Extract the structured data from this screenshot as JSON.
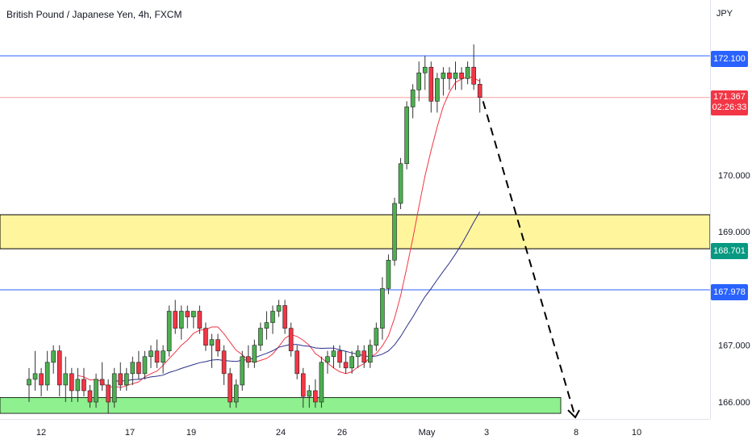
{
  "header": {
    "title": "British Pound / Japanese Yen, 4h, FXCM",
    "currency": "JPY"
  },
  "price_labels": {
    "resistance_top": {
      "value": "172.100",
      "color": "#2962ff"
    },
    "last_price": {
      "value": "171.367",
      "countdown": "02:26:33",
      "color": "#f23645"
    },
    "support_zone": {
      "value": "168.701",
      "color": "#089981"
    },
    "level_mid": {
      "value": "167.978",
      "color": "#2962ff"
    }
  },
  "chart_data": {
    "type": "candlestick",
    "title": "British Pound / Japanese Yen, 4h, FXCM",
    "y_axis": {
      "ticks": [
        "166.000",
        "167.000",
        "169.000",
        "170.000"
      ],
      "ylim": [
        165.8,
        172.4
      ]
    },
    "x_axis": {
      "ticks": [
        "12",
        "17",
        "19",
        "24",
        "26",
        "May",
        "3",
        "8",
        "10"
      ]
    },
    "horizontal_lines": [
      {
        "value": 172.1,
        "color": "#2962ff"
      },
      {
        "value": 171.367,
        "color": "#f7a1a1"
      },
      {
        "value": 167.978,
        "color": "#2962ff"
      }
    ],
    "zones": [
      {
        "from": 168.701,
        "to": 169.3,
        "color": "#fff59d"
      },
      {
        "from": 165.8,
        "to": 166.08,
        "color": "#8ef08e"
      }
    ],
    "candles": [
      [
        166.3,
        166.6,
        166.0,
        166.4
      ],
      [
        166.4,
        166.9,
        166.2,
        166.5
      ],
      [
        166.5,
        166.6,
        166.1,
        166.3
      ],
      [
        166.3,
        166.9,
        166.2,
        166.7
      ],
      [
        166.7,
        167.0,
        166.5,
        166.9
      ],
      [
        166.9,
        167.0,
        166.1,
        166.3
      ],
      [
        166.3,
        166.8,
        166.0,
        166.5
      ],
      [
        166.5,
        166.6,
        166.0,
        166.2
      ],
      [
        166.2,
        166.6,
        166.0,
        166.4
      ],
      [
        166.4,
        166.6,
        166.1,
        166.2
      ],
      [
        166.2,
        166.3,
        165.9,
        166.0
      ],
      [
        166.0,
        166.5,
        165.9,
        166.4
      ],
      [
        166.4,
        166.7,
        166.2,
        166.3
      ],
      [
        166.3,
        166.4,
        165.8,
        166.0
      ],
      [
        166.0,
        166.6,
        165.9,
        166.5
      ],
      [
        166.5,
        166.7,
        166.2,
        166.3
      ],
      [
        166.3,
        166.6,
        166.2,
        166.5
      ],
      [
        166.5,
        166.8,
        166.3,
        166.7
      ],
      [
        166.7,
        166.9,
        166.4,
        166.5
      ],
      [
        166.5,
        166.9,
        166.4,
        166.8
      ],
      [
        166.8,
        167.0,
        166.6,
        166.9
      ],
      [
        166.9,
        167.1,
        166.6,
        166.7
      ],
      [
        166.7,
        167.0,
        166.5,
        166.9
      ],
      [
        166.9,
        167.7,
        166.8,
        167.6
      ],
      [
        167.6,
        167.8,
        167.2,
        167.3
      ],
      [
        167.3,
        167.7,
        167.1,
        167.6
      ],
      [
        167.6,
        167.7,
        167.3,
        167.5
      ],
      [
        167.5,
        167.6,
        167.3,
        167.6
      ],
      [
        167.6,
        167.7,
        167.2,
        167.3
      ],
      [
        167.3,
        167.4,
        166.9,
        167.0
      ],
      [
        167.0,
        167.2,
        166.6,
        167.1
      ],
      [
        167.1,
        167.2,
        166.8,
        166.9
      ],
      [
        166.9,
        167.0,
        166.3,
        166.5
      ],
      [
        166.5,
        166.6,
        165.9,
        166.0
      ],
      [
        166.0,
        166.4,
        165.9,
        166.3
      ],
      [
        166.3,
        166.9,
        166.2,
        166.8
      ],
      [
        166.8,
        167.0,
        166.6,
        166.7
      ],
      [
        166.7,
        167.1,
        166.6,
        167.0
      ],
      [
        167.0,
        167.4,
        166.9,
        167.3
      ],
      [
        167.3,
        167.6,
        167.1,
        167.4
      ],
      [
        167.4,
        167.7,
        167.2,
        167.6
      ],
      [
        167.6,
        167.8,
        167.5,
        167.7
      ],
      [
        167.7,
        167.8,
        167.2,
        167.3
      ],
      [
        167.3,
        167.4,
        166.8,
        166.9
      ],
      [
        166.9,
        167.0,
        166.4,
        166.5
      ],
      [
        166.5,
        166.6,
        165.9,
        166.1
      ],
      [
        166.1,
        166.3,
        165.9,
        166.2
      ],
      [
        166.2,
        166.4,
        165.9,
        166.0
      ],
      [
        166.0,
        166.8,
        165.9,
        166.7
      ],
      [
        166.7,
        166.9,
        166.5,
        166.8
      ],
      [
        166.8,
        167.0,
        166.6,
        166.9
      ],
      [
        166.9,
        167.0,
        166.6,
        166.7
      ],
      [
        166.7,
        166.9,
        166.5,
        166.6
      ],
      [
        166.6,
        166.9,
        166.5,
        166.8
      ],
      [
        166.8,
        167.0,
        166.6,
        166.9
      ],
      [
        166.9,
        167.0,
        166.6,
        166.7
      ],
      [
        166.7,
        167.1,
        166.6,
        167.0
      ],
      [
        167.0,
        167.4,
        166.9,
        167.3
      ],
      [
        167.3,
        168.2,
        167.1,
        168.0
      ],
      [
        168.0,
        168.6,
        167.9,
        168.5
      ],
      [
        168.5,
        169.6,
        168.4,
        169.5
      ],
      [
        169.5,
        170.3,
        169.4,
        170.2
      ],
      [
        170.2,
        171.3,
        170.1,
        171.2
      ],
      [
        171.2,
        171.6,
        171.0,
        171.5
      ],
      [
        171.5,
        172.0,
        171.3,
        171.8
      ],
      [
        171.8,
        172.1,
        171.5,
        171.9
      ],
      [
        171.9,
        172.0,
        171.1,
        171.3
      ],
      [
        171.3,
        171.8,
        171.1,
        171.7
      ],
      [
        171.7,
        171.9,
        171.4,
        171.8
      ],
      [
        171.8,
        171.9,
        171.5,
        171.7
      ],
      [
        171.7,
        172.0,
        171.5,
        171.8
      ],
      [
        171.8,
        171.9,
        171.5,
        171.7
      ],
      [
        171.7,
        172.0,
        171.6,
        171.9
      ],
      [
        171.9,
        172.3,
        171.5,
        171.6
      ],
      [
        171.6,
        171.7,
        171.1,
        171.367
      ]
    ],
    "projection": [
      [
        171.367,
        8
      ],
      [
        165.8,
        8.5
      ]
    ]
  }
}
